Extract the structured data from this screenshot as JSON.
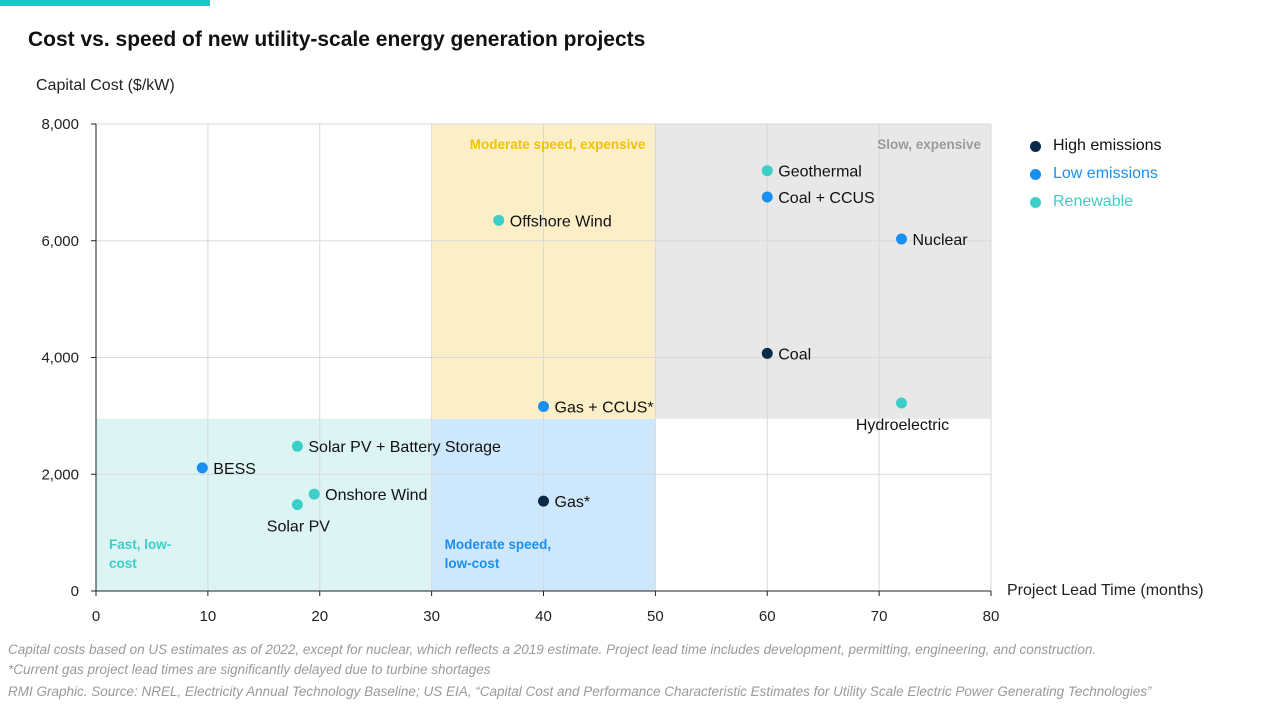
{
  "colors": {
    "accent": "#1cc8c8",
    "high_emissions": "#0b2a4a",
    "low_emissions": "#1a8ff0",
    "renewable": "#3ccfc8",
    "zone_fast_lowcost": "#dcf4f4",
    "zone_moderate_lowcost": "#cde7fc",
    "zone_moderate_expensive": "#fcefc8",
    "zone_slow_expensive": "#e8e8e8",
    "zone_label_fast": "#3ccfc8",
    "zone_label_moderate_lowcost": "#1a8ff0",
    "zone_label_moderate_expensive": "#f2c200",
    "zone_label_slow": "#9a9a9a"
  },
  "chart_data": {
    "type": "scatter",
    "title": "Cost vs. speed of new utility-scale energy generation projects",
    "xlabel": "Project Lead Time (months)",
    "ylabel": "Capital Cost ($/kW)",
    "xlim": [
      0,
      80
    ],
    "ylim": [
      0,
      8000
    ],
    "x_ticks": [
      0,
      10,
      20,
      30,
      40,
      50,
      60,
      70,
      80
    ],
    "y_ticks": [
      0,
      2000,
      4000,
      6000,
      8000
    ],
    "x_tick_labels": [
      "0",
      "10",
      "20",
      "30",
      "40",
      "50",
      "60",
      "70",
      "80"
    ],
    "y_tick_labels": [
      "0",
      "2,000",
      "4,000",
      "6,000",
      "8,000"
    ],
    "grid": true,
    "legend_position": "right",
    "legend": [
      {
        "key": "high",
        "label": "High emissions"
      },
      {
        "key": "low",
        "label": "Low emissions"
      },
      {
        "key": "renewable",
        "label": "Renewable"
      }
    ],
    "zones": [
      {
        "label": "Fast, low-\ncost",
        "x": [
          0,
          30
        ],
        "y": [
          0,
          2950
        ],
        "fill": "zone_fast_lowcost",
        "label_color": "zone_label_fast",
        "anchor": "bottom-left"
      },
      {
        "label": "Moderate speed,\nlow-cost",
        "x": [
          30,
          50
        ],
        "y": [
          0,
          2950
        ],
        "fill": "zone_moderate_lowcost",
        "label_color": "zone_label_moderate_lowcost",
        "anchor": "bottom-left"
      },
      {
        "label": "Moderate speed, expensive",
        "x": [
          30,
          50
        ],
        "y": [
          2950,
          8000
        ],
        "fill": "zone_moderate_expensive",
        "label_color": "zone_label_moderate_expensive",
        "anchor": "top-right"
      },
      {
        "label": "Slow, expensive",
        "x": [
          50,
          80
        ],
        "y": [
          2950,
          8000
        ],
        "fill": "zone_slow_expensive",
        "label_color": "zone_label_slow",
        "anchor": "top-right"
      }
    ],
    "points": [
      {
        "label": "Geothermal",
        "x": 60,
        "y": 7200,
        "category": "renewable",
        "label_pos": "right"
      },
      {
        "label": "Coal + CCUS",
        "x": 60,
        "y": 6750,
        "category": "low",
        "label_pos": "right"
      },
      {
        "label": "Nuclear",
        "x": 72,
        "y": 6030,
        "category": "low",
        "label_pos": "right"
      },
      {
        "label": "Offshore Wind",
        "x": 36,
        "y": 6350,
        "category": "renewable",
        "label_pos": "right"
      },
      {
        "label": "Coal",
        "x": 60,
        "y": 4070,
        "category": "high",
        "label_pos": "right"
      },
      {
        "label": "Hydroelectric",
        "x": 72,
        "y": 3220,
        "category": "renewable",
        "label_pos": "below"
      },
      {
        "label": "Gas + CCUS*",
        "x": 40,
        "y": 3160,
        "category": "low",
        "label_pos": "right"
      },
      {
        "label": "Solar PV + Battery Storage",
        "x": 18,
        "y": 2480,
        "category": "renewable",
        "label_pos": "right"
      },
      {
        "label": "BESS",
        "x": 9.5,
        "y": 2110,
        "category": "low",
        "label_pos": "right"
      },
      {
        "label": "Onshore Wind",
        "x": 19.5,
        "y": 1660,
        "category": "renewable",
        "label_pos": "right"
      },
      {
        "label": "Gas*",
        "x": 40,
        "y": 1540,
        "category": "high",
        "label_pos": "right"
      },
      {
        "label": "Solar PV",
        "x": 18,
        "y": 1480,
        "category": "renewable",
        "label_pos": "below"
      }
    ]
  },
  "notes": {
    "line1": "Capital costs based on US estimates as of 2022, except for nuclear, which reflects a 2019 estimate. Project lead time includes development, permitting, engineering, and construction.",
    "line2": "*Current gas project lead times are significantly delayed due to turbine shortages",
    "source": "RMI Graphic. Source: NREL, Electricity Annual Technology Baseline; US EIA, “Capital Cost and Performance Characteristic Estimates for Utility Scale Electric Power Generating Technologies”"
  }
}
